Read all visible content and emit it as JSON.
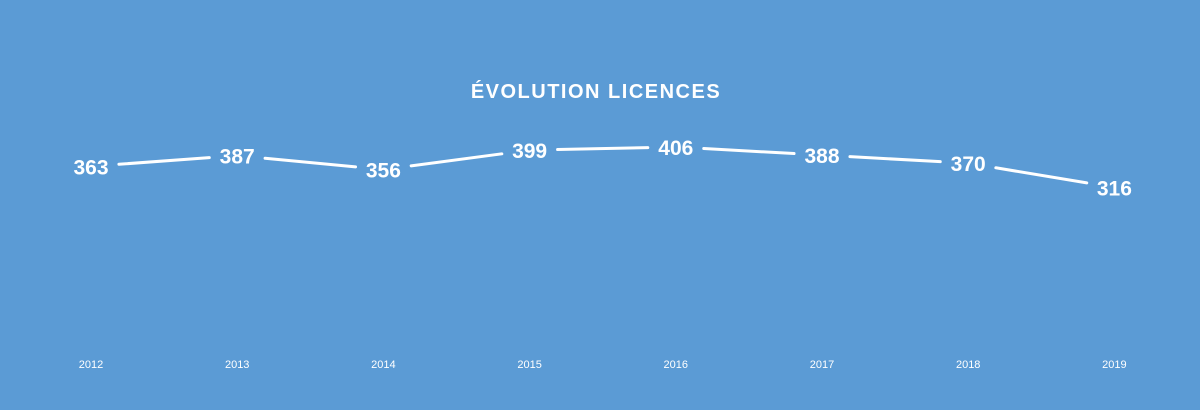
{
  "chart_data": {
    "type": "line",
    "title": "ÉVOLUTION LICENCES",
    "categories": [
      "2012",
      "2013",
      "2014",
      "2015",
      "2016",
      "2017",
      "2018",
      "2019"
    ],
    "values": [
      363,
      387,
      356,
      399,
      406,
      388,
      370,
      316
    ],
    "xlabel": "",
    "ylabel": "",
    "grid": false,
    "legend": "none",
    "line_color": "#ffffff",
    "background_color": "#5b9bd5"
  }
}
